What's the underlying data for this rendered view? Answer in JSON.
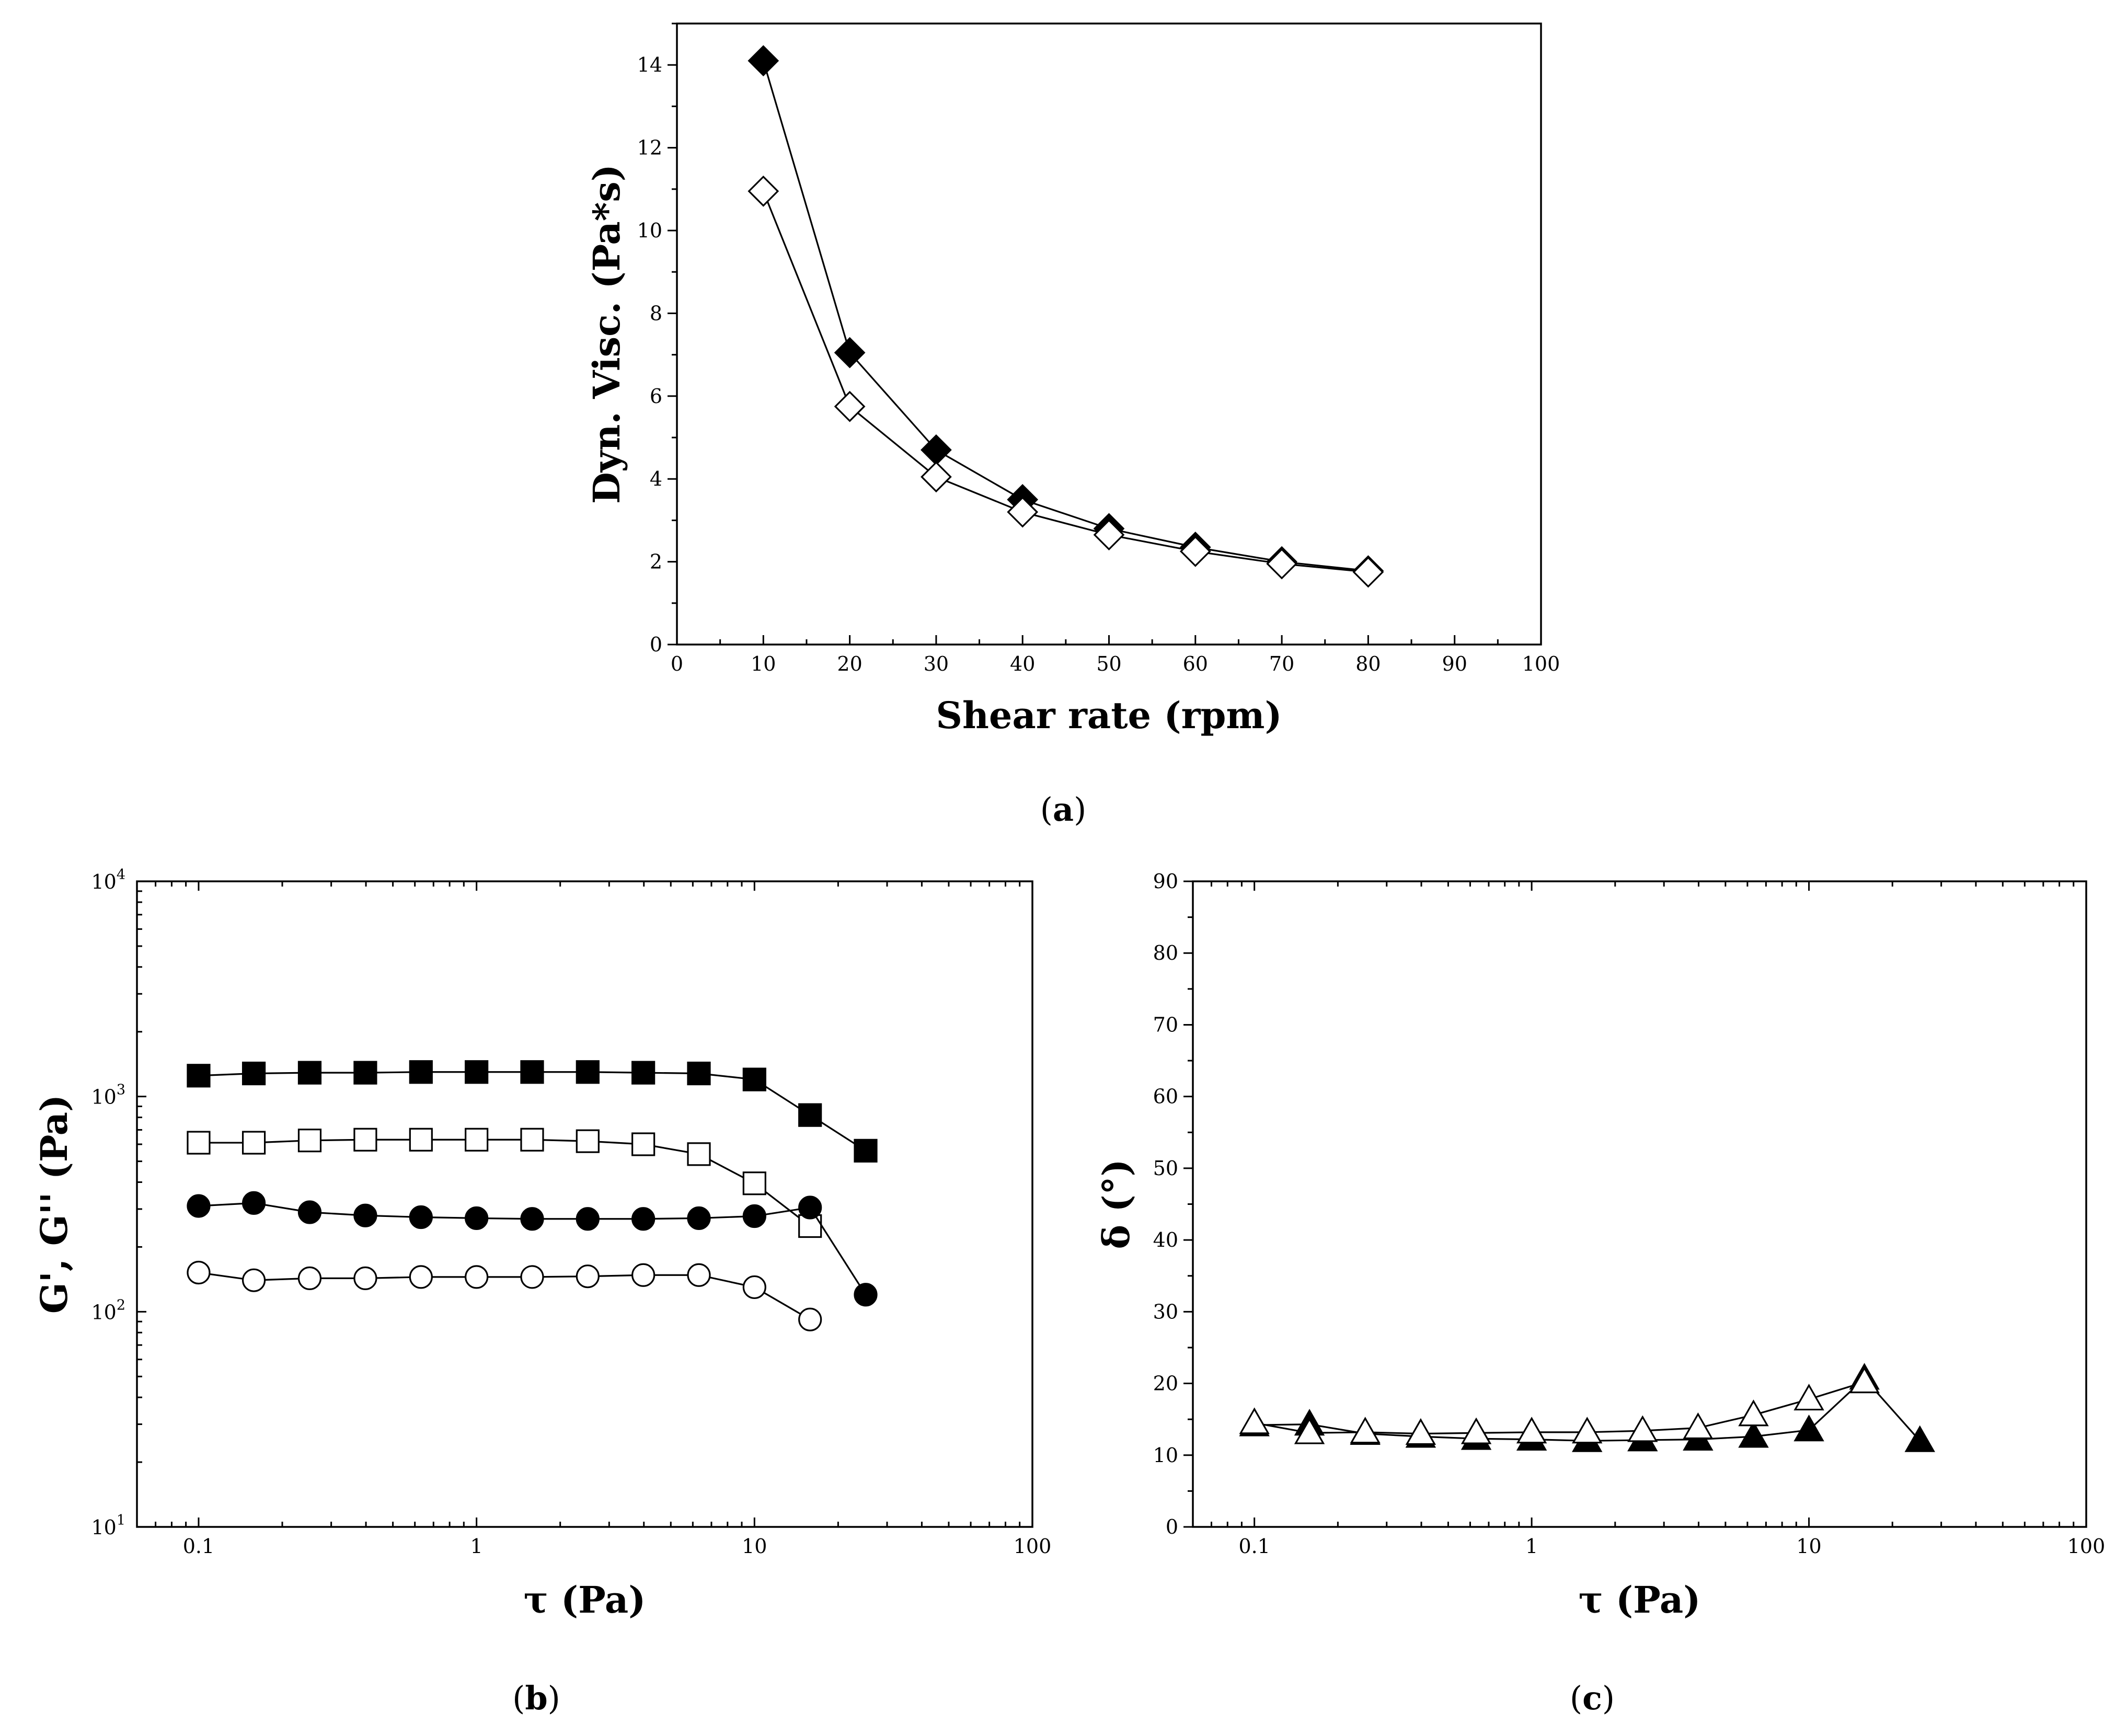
{
  "chart_data": [
    {
      "id": "a",
      "panel_label": "(a)",
      "type": "line",
      "xlabel": "Shear rate (rpm)",
      "ylabel": "Dyn. Visc. (Pa*s)",
      "xscale": "linear",
      "yscale": "linear",
      "xlim": [
        0,
        100
      ],
      "ylim": [
        0,
        15
      ],
      "xticks": [
        0,
        10,
        20,
        30,
        40,
        50,
        60,
        70,
        80,
        90,
        100
      ],
      "yticks": [
        0,
        2,
        4,
        6,
        8,
        10,
        12,
        14
      ],
      "series": [
        {
          "name": "filled-diamond",
          "marker": "diamond",
          "fill": "#000000",
          "x": [
            10,
            20,
            30,
            40,
            50,
            60,
            70,
            80
          ],
          "y": [
            14.1,
            7.05,
            4.7,
            3.5,
            2.8,
            2.35,
            2.0,
            1.78
          ]
        },
        {
          "name": "open-diamond",
          "marker": "diamond",
          "fill": "#ffffff",
          "x": [
            10,
            20,
            30,
            40,
            50,
            60,
            70,
            80
          ],
          "y": [
            10.95,
            5.75,
            4.05,
            3.2,
            2.65,
            2.25,
            1.95,
            1.75
          ]
        }
      ]
    },
    {
      "id": "b",
      "panel_label": "(b)",
      "type": "line",
      "xlabel": "τ (Pa)",
      "ylabel": "G', G'' (Pa)",
      "xscale": "log",
      "yscale": "log",
      "xlim": [
        0.06,
        100
      ],
      "ylim": [
        10,
        10000
      ],
      "xticks": [
        0.1,
        1,
        10,
        100
      ],
      "xtick_labels": [
        "0.1",
        "1",
        "10",
        "100"
      ],
      "yticks": [
        10,
        100,
        1000,
        10000
      ],
      "ytick_labels": [
        [
          "10",
          "1"
        ],
        [
          "10",
          "2"
        ],
        [
          "10",
          "3"
        ],
        [
          "10",
          "4"
        ]
      ],
      "series": [
        {
          "name": "filled-square",
          "marker": "square",
          "fill": "#000000",
          "x": [
            0.1,
            0.158,
            0.251,
            0.398,
            0.631,
            1.0,
            1.585,
            2.512,
            3.981,
            6.31,
            10.0,
            15.85,
            25.12
          ],
          "y": [
            1250,
            1280,
            1290,
            1290,
            1300,
            1300,
            1300,
            1300,
            1290,
            1280,
            1200,
            820,
            560
          ]
        },
        {
          "name": "open-square",
          "marker": "square",
          "fill": "#ffffff",
          "x": [
            0.1,
            0.158,
            0.251,
            0.398,
            0.631,
            1.0,
            1.585,
            2.512,
            3.981,
            6.31,
            10.0,
            15.85
          ],
          "y": [
            610,
            610,
            625,
            630,
            630,
            630,
            630,
            620,
            600,
            540,
            395,
            250
          ]
        },
        {
          "name": "filled-circle",
          "marker": "circle",
          "fill": "#000000",
          "x": [
            0.1,
            0.158,
            0.251,
            0.398,
            0.631,
            1.0,
            1.585,
            2.512,
            3.981,
            6.31,
            10.0,
            15.85,
            25.12
          ],
          "y": [
            310,
            320,
            290,
            280,
            275,
            272,
            270,
            270,
            270,
            272,
            278,
            305,
            120
          ]
        },
        {
          "name": "open-circle",
          "marker": "circle",
          "fill": "#ffffff",
          "x": [
            0.1,
            0.158,
            0.251,
            0.398,
            0.631,
            1.0,
            1.585,
            2.512,
            3.981,
            6.31,
            10.0,
            15.85
          ],
          "y": [
            152,
            140,
            143,
            143,
            145,
            145,
            145,
            146,
            148,
            148,
            130,
            92
          ]
        }
      ]
    },
    {
      "id": "c",
      "panel_label": "(c)",
      "type": "line",
      "xlabel": "τ (Pa)",
      "ylabel": "δ (°)",
      "xscale": "log",
      "yscale": "linear",
      "xlim": [
        0.06,
        100
      ],
      "ylim": [
        0,
        90
      ],
      "xticks": [
        0.1,
        1,
        10,
        100
      ],
      "xtick_labels": [
        "0.1",
        "1",
        "10",
        "100"
      ],
      "yticks": [
        0,
        10,
        20,
        30,
        40,
        50,
        60,
        70,
        80,
        90
      ],
      "series": [
        {
          "name": "filled-triangle",
          "marker": "triangle",
          "fill": "#000000",
          "x": [
            0.1,
            0.158,
            0.251,
            0.398,
            0.631,
            1.0,
            1.585,
            2.512,
            3.981,
            6.31,
            10.0,
            15.85,
            25.12
          ],
          "y": [
            14.2,
            14.3,
            13.0,
            12.6,
            12.3,
            12.2,
            12.0,
            12.1,
            12.2,
            12.6,
            13.5,
            20.7,
            12.0
          ]
        },
        {
          "name": "open-triangle",
          "marker": "triangle",
          "fill": "#ffffff",
          "x": [
            0.1,
            0.158,
            0.251,
            0.398,
            0.631,
            1.0,
            1.585,
            2.512,
            3.981,
            6.31,
            10.0,
            15.85
          ],
          "y": [
            14.5,
            13.1,
            13.2,
            13.0,
            13.1,
            13.2,
            13.2,
            13.4,
            13.8,
            15.6,
            17.8,
            20.2
          ]
        }
      ]
    }
  ]
}
